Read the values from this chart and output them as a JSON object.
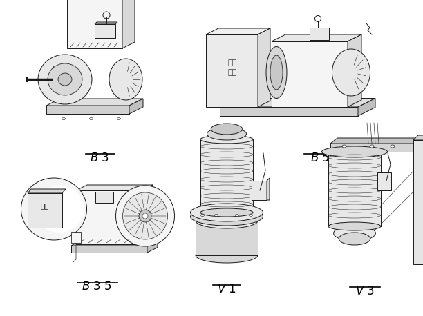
{
  "bg_color": "#ffffff",
  "labels": [
    "B3",
    "B5",
    "B35",
    "V1",
    "V3"
  ],
  "label_texts": [
    "B 3",
    "B 5",
    "B 3 5",
    "V 1",
    "V 3"
  ],
  "figsize": [
    6.12,
    4.58
  ],
  "dpi": 100,
  "line_color": "#1a1a1a",
  "face_color_light": "#f8f8f8",
  "face_color_mid": "#e8e8e8",
  "face_color_dark": "#d0d0d0"
}
